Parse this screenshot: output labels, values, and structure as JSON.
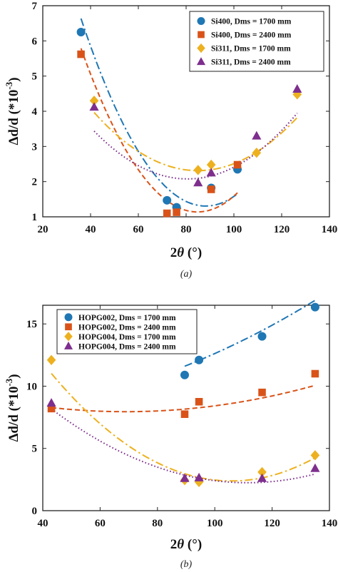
{
  "chart_data": [
    {
      "type": "scatter",
      "caption": "(a)",
      "xlabel": "2θ (°)",
      "ylabel": "Δd/d (*10-3)",
      "xlim": [
        20,
        140
      ],
      "ylim": [
        1,
        7
      ],
      "xticks": [
        "20",
        "40",
        "60",
        "80",
        "100",
        "120",
        "140"
      ],
      "yticks": [
        "1",
        "2",
        "3",
        "4",
        "5",
        "6",
        "7"
      ],
      "grid": false,
      "legend_position": "top-right",
      "series": [
        {
          "name": "Si400, Dms = 1700 mm",
          "marker": "circle",
          "color": "#1f77b4",
          "points": [
            [
              36,
              6.25
            ],
            [
              72,
              1.47
            ],
            [
              76,
              1.27
            ],
            [
              90.5,
              1.82
            ],
            [
              101.5,
              2.35
            ]
          ],
          "fit": [
            0.001958,
            -0.3453,
            16.53
          ]
        },
        {
          "name": "Si400, Dms = 2400 mm",
          "marker": "square",
          "color": "#d95319",
          "points": [
            [
              36,
              5.62
            ],
            [
              72,
              1.1
            ],
            [
              76,
              1.13
            ],
            [
              90.5,
              1.78
            ],
            [
              101.5,
              2.48
            ]
          ],
          "fit": [
            0.001953,
            -0.3312,
            15.18
          ]
        },
        {
          "name": "Si311, Dms = 1700 mm",
          "marker": "diamond",
          "color": "#edb120",
          "points": [
            [
              41.5,
              4.3
            ],
            [
              85,
              2.33
            ],
            [
              90.5,
              2.48
            ],
            [
              109.5,
              2.82
            ],
            [
              126.5,
              4.48
            ]
          ],
          "fit": [
            0.000875,
            -0.1487,
            8.63
          ]
        },
        {
          "name": "Si311, Dms = 2400 mm",
          "marker": "triangle",
          "color": "#7e2f8e",
          "points": [
            [
              41.5,
              4.12
            ],
            [
              85,
              1.97
            ],
            [
              90.5,
              2.25
            ],
            [
              109.5,
              3.3
            ],
            [
              126.5,
              4.63
            ]
          ],
          "fit": [
            0.000888,
            -0.1432,
            7.85
          ]
        }
      ]
    },
    {
      "type": "scatter",
      "caption": "(b)",
      "xlabel": "2θ (°)",
      "ylabel": "Δd/d (*10-3)",
      "xlim": [
        40,
        140
      ],
      "ylim": [
        0,
        16.5
      ],
      "xticks": [
        "40",
        "60",
        "80",
        "100",
        "120",
        "140"
      ],
      "yticks": [
        "0",
        "5",
        "10",
        "15"
      ],
      "grid": false,
      "legend_position": "top-left",
      "series": [
        {
          "name": "HOPG002, Dms = 1700 mm",
          "marker": "circle",
          "color": "#1f77b4",
          "points": [
            [
              89.5,
              10.9
            ],
            [
              94.5,
              12.1
            ],
            [
              116.5,
              14.0
            ],
            [
              135,
              16.35
            ]
          ],
          "fit": [
            0.000552,
            -0.0075,
            7.85
          ]
        },
        {
          "name": "HOPG002, Dms = 2400 mm",
          "marker": "square",
          "color": "#d95319",
          "points": [
            [
              43,
              8.2
            ],
            [
              89.5,
              7.75
            ],
            [
              94.5,
              8.75
            ],
            [
              116.5,
              9.5
            ],
            [
              135,
              11.0
            ]
          ],
          "fit": [
            0.000484,
            -0.0667,
            10.25
          ]
        },
        {
          "name": "HOPG004, Dms = 1700 mm",
          "marker": "diamond",
          "color": "#edb120",
          "points": [
            [
              43,
              12.1
            ],
            [
              89.5,
              2.45
            ],
            [
              94.5,
              2.3
            ],
            [
              116.5,
              3.1
            ],
            [
              135,
              4.45
            ]
          ],
          "fit": [
            0.00219,
            -0.4634,
            26.9
          ]
        },
        {
          "name": "HOPG004, Dms = 2400 mm",
          "marker": "triangle",
          "color": "#7e2f8e",
          "points": [
            [
              43,
              8.65
            ],
            [
              89.5,
              2.6
            ],
            [
              94.5,
              2.65
            ],
            [
              116.5,
              2.6
            ],
            [
              135,
              3.4
            ]
          ],
          "fit": [
            0.001264,
            -0.2818,
            17.95
          ]
        }
      ]
    }
  ]
}
